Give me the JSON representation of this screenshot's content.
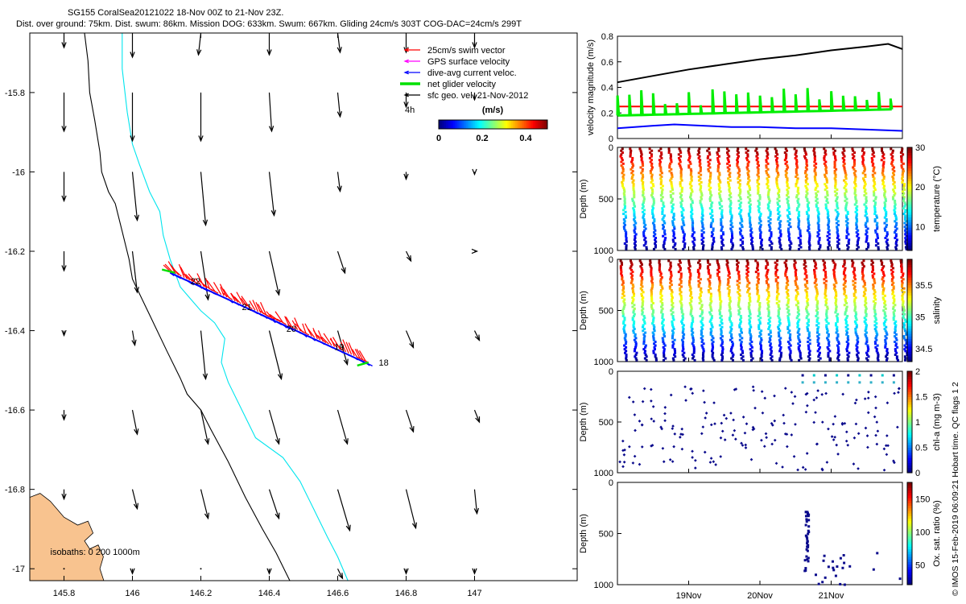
{
  "title": {
    "line1": "SG155 CoralSea20121022 18-Nov 00Z to 21-Nov 23Z.",
    "line2": "Dist. over ground: 75km. Dist. swum: 86km. Mission DOG: 633km. Swum: 667km. Gliding 24cm/s 303T COG-DAC=24cm/s 299T"
  },
  "watermark": "© IMOS 15-Feb-2019 06:09:21 Hobart time. QC flags 1  2",
  "colors": {
    "swim": "#ff0000",
    "gps": "#ff00ff",
    "dac": "#0000ff",
    "net": "#00e000",
    "geo": "#000000",
    "isobath_200": "#00e5ee",
    "isobath_1000": "#000000",
    "land": "#f8c38f"
  },
  "chart_data": [
    {
      "id": "map",
      "type": "scatter",
      "xlim": [
        145.7,
        147.3
      ],
      "ylim": [
        -17.03,
        -15.65
      ],
      "x_ticks": [
        145.8,
        146,
        146.2,
        146.4,
        146.6,
        146.8,
        147
      ],
      "x_tick_labels": [
        "145.8",
        "146",
        "146.2",
        "146.4",
        "146.6",
        "146.8",
        "147"
      ],
      "y_ticks": [
        -15.8,
        -16,
        -16.2,
        -16.4,
        -16.6,
        -16.8,
        -17
      ],
      "y_tick_labels": [
        "-15.8",
        "-16",
        "-16.2",
        "-16.4",
        "-16.6",
        "-16.8",
        "-17"
      ],
      "legend": {
        "position": "top-right",
        "entries": [
          "25cm/s swim vector",
          "GPS surface velocity",
          "dive-avg current veloc.",
          "net glider velocity",
          "sfc geo. vel. 21-Nov-2012"
        ]
      },
      "scale_label": "4h",
      "colorbar": {
        "label": "(m/s)",
        "ticks": [
          0,
          0.2,
          0.4
        ],
        "tick_labels": [
          "0",
          "0.2",
          "0.4"
        ],
        "range": [
          0,
          0.5
        ],
        "colormap": "jet"
      },
      "isobath_label": "isobaths: 0   200  1000m",
      "track": {
        "start": [
          146.69,
          -16.48
        ],
        "end": [
          146.11,
          -16.25
        ]
      },
      "day_labels": [
        {
          "text": "18",
          "x": 146.72,
          "y": -16.48
        },
        {
          "text": "19",
          "x": 146.59,
          "y": -16.44
        },
        {
          "text": "20",
          "x": 146.45,
          "y": -16.395
        },
        {
          "text": "21",
          "x": 146.32,
          "y": -16.34
        },
        {
          "text": "22",
          "x": 146.17,
          "y": -16.275
        }
      ],
      "geo_velocity_grid": {
        "lons": [
          145.8,
          146.0,
          146.2,
          146.4,
          146.6,
          146.8,
          147.0
        ],
        "lats": [
          -15.65,
          -15.8,
          -16.0,
          -16.2,
          -16.4,
          -16.6,
          -16.8,
          -17.0
        ],
        "u_v_m_per_s": [
          [
            [
              0.0,
              -0.06
            ],
            [
              0.0,
              -0.1
            ],
            [
              -0.01,
              -0.09
            ],
            [
              0.0,
              -0.09
            ],
            [
              0.01,
              -0.08
            ],
            [
              0.0,
              -0.08
            ],
            [
              0.0,
              -0.06
            ]
          ],
          [
            [
              0.0,
              -0.16
            ],
            [
              0.0,
              -0.2
            ],
            [
              0.0,
              -0.2
            ],
            [
              0.01,
              -0.16
            ],
            [
              0.01,
              -0.1
            ],
            [
              0.0,
              -0.06
            ],
            [
              0.0,
              -0.03
            ]
          ],
          [
            [
              0.0,
              -0.12
            ],
            [
              0.02,
              -0.2
            ],
            [
              0.02,
              -0.22
            ],
            [
              0.02,
              -0.18
            ],
            [
              0.01,
              -0.08
            ],
            [
              0.0,
              -0.03
            ],
            [
              0.0,
              -0.01
            ]
          ],
          [
            [
              0.0,
              -0.08
            ],
            [
              0.02,
              -0.17
            ],
            [
              0.03,
              -0.2
            ],
            [
              0.04,
              -0.18
            ],
            [
              0.03,
              -0.09
            ],
            [
              0.02,
              -0.04
            ],
            [
              0.01,
              0.0
            ]
          ],
          [
            [
              0.0,
              -0.02
            ],
            [
              0.01,
              -0.06
            ],
            [
              0.02,
              -0.2
            ],
            [
              0.05,
              -0.2
            ],
            [
              0.04,
              -0.14
            ],
            [
              0.03,
              -0.07
            ],
            [
              0.02,
              -0.04
            ]
          ],
          [
            [
              0.0,
              -0.04
            ],
            [
              0.02,
              -0.1
            ],
            [
              0.03,
              -0.14
            ],
            [
              0.04,
              -0.14
            ],
            [
              0.04,
              -0.14
            ],
            [
              0.03,
              -0.09
            ],
            [
              0.02,
              -0.05
            ]
          ],
          [
            [
              0.0,
              -0.04
            ],
            [
              0.02,
              -0.08
            ],
            [
              0.03,
              -0.12
            ],
            [
              0.04,
              -0.12
            ],
            [
              0.05,
              -0.17
            ],
            [
              0.04,
              -0.16
            ],
            [
              0.01,
              -0.1
            ]
          ],
          [
            [
              0.0,
              0.0
            ],
            [
              0.0,
              -0.02
            ],
            [
              0.0,
              0.0
            ],
            [
              0.0,
              -0.02
            ],
            [
              0.02,
              -0.04
            ],
            [
              0.0,
              -0.02
            ],
            [
              0.0,
              -0.02
            ]
          ]
        ]
      }
    },
    {
      "id": "velocity",
      "type": "line",
      "ylabel": "velocity magnitude (m/s)",
      "ylim": [
        0,
        0.8
      ],
      "y_ticks": [
        0,
        0.2,
        0.4,
        0.6,
        0.8
      ],
      "y_tick_labels": [
        "0",
        "0.2",
        "0.4",
        "0.6",
        "0.8"
      ],
      "xlim_days": [
        18,
        22
      ],
      "x_tick_labels": [
        "19Nov",
        "20Nov",
        "21Nov"
      ],
      "x_tick_days": [
        19,
        20,
        21
      ],
      "series": [
        {
          "color": "#000000",
          "x": [
            18.0,
            18.5,
            19.0,
            19.5,
            20.0,
            20.5,
            21.0,
            21.5,
            21.8,
            22.0
          ],
          "values": [
            0.44,
            0.49,
            0.54,
            0.58,
            0.62,
            0.65,
            0.69,
            0.72,
            0.74,
            0.7
          ]
        },
        {
          "color": "#ff0000",
          "x": [
            18.0,
            22.0
          ],
          "values": [
            0.25,
            0.25
          ]
        },
        {
          "color": "#00ee00",
          "x": [
            18.0,
            18.3,
            18.5,
            18.8,
            19.0,
            19.3,
            19.6,
            20.0,
            20.4,
            20.8,
            21.2,
            21.6,
            22.0
          ],
          "values": [
            0.2,
            0.18,
            0.19,
            0.16,
            0.18,
            0.17,
            0.19,
            0.19,
            0.22,
            0.22,
            0.22,
            0.23,
            0.22
          ]
        },
        {
          "color": "#0000ff",
          "x": [
            18.0,
            18.5,
            18.8,
            19.2,
            19.6,
            20.0,
            20.5,
            21.0,
            21.5,
            22.0
          ],
          "values": [
            0.08,
            0.1,
            0.11,
            0.1,
            0.09,
            0.09,
            0.08,
            0.08,
            0.07,
            0.06
          ]
        }
      ]
    },
    {
      "id": "temperature",
      "type": "scatter",
      "ylabel": "Depth (m)",
      "ylim": [
        1000,
        0
      ],
      "y_ticks": [
        0,
        500,
        1000
      ],
      "y_tick_labels": [
        "0",
        "500",
        "1000"
      ],
      "colorbar": {
        "label": "temperature (°C)",
        "ticks": [
          10,
          20,
          30
        ],
        "tick_labels": [
          "10",
          "20",
          "30"
        ],
        "range": [
          4,
          30
        ]
      }
    },
    {
      "id": "salinity",
      "type": "scatter",
      "ylabel": "Depth (m)",
      "ylim": [
        1000,
        0
      ],
      "y_ticks": [
        0,
        500,
        1000
      ],
      "y_tick_labels": [
        "0",
        "500",
        "1000"
      ],
      "colorbar": {
        "label": "salinity",
        "ticks": [
          34.5,
          35,
          35.5
        ],
        "tick_labels": [
          "34.5",
          "35",
          "35.5"
        ],
        "range": [
          34.3,
          35.9
        ]
      }
    },
    {
      "id": "chla",
      "type": "scatter",
      "ylabel": "Depth (m)",
      "ylim": [
        1000,
        0
      ],
      "y_ticks": [
        0,
        500,
        1000
      ],
      "y_tick_labels": [
        "0",
        "500",
        "1000"
      ],
      "colorbar": {
        "label": "chl-a (mg m-3)",
        "ticks": [
          0,
          0.5,
          1,
          1.5,
          2
        ],
        "tick_labels": [
          "0",
          "0.5",
          "1",
          "1.5",
          "2"
        ],
        "range": [
          0,
          2
        ]
      }
    },
    {
      "id": "oxygen",
      "type": "scatter",
      "ylabel": "Depth (m)",
      "ylim": [
        1000,
        0
      ],
      "y_ticks": [
        0,
        500,
        1000
      ],
      "y_tick_labels": [
        "0",
        "500",
        "1000"
      ],
      "xlim_days": [
        18,
        22
      ],
      "x_tick_labels": [
        "19Nov",
        "20Nov",
        "21Nov"
      ],
      "x_tick_days": [
        19,
        20,
        21
      ],
      "colorbar": {
        "label": "Ox. sat. ratio (%)",
        "ticks": [
          50,
          100,
          150
        ],
        "tick_labels": [
          "50",
          "100",
          "150"
        ],
        "range": [
          20,
          175
        ]
      }
    }
  ]
}
